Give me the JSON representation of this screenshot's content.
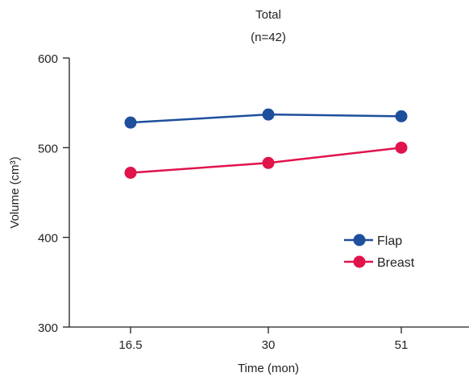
{
  "chart_data": {
    "type": "line",
    "title": "Total",
    "subtitle": "(n=42)",
    "xlabel": "Time (mon)",
    "ylabel": "Volume (cm³)",
    "categories": [
      "16.5",
      "30",
      "51"
    ],
    "ylim": [
      300,
      600
    ],
    "yticks": [
      300,
      400,
      500,
      600
    ],
    "grid": false,
    "legend_position": "bottom-right",
    "series": [
      {
        "name": "Flap",
        "values": [
          528,
          537,
          535
        ],
        "color": "#1d4f9c"
      },
      {
        "name": "Breast",
        "values": [
          472,
          483,
          500
        ],
        "color": "#e0134b"
      }
    ]
  }
}
